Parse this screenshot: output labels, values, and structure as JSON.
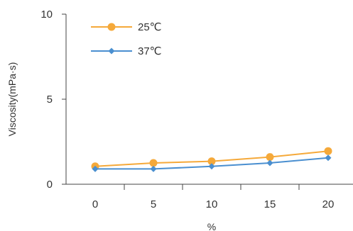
{
  "chart_data": {
    "type": "line",
    "title": "",
    "xlabel": "%",
    "ylabel": "Viscosity(mPa·s)",
    "categories": [
      "0",
      "5",
      "10",
      "15",
      "20"
    ],
    "x_values": [
      0,
      5,
      10,
      15,
      20
    ],
    "ylim": [
      0,
      10
    ],
    "y_ticks": [
      "0",
      "5",
      "10"
    ],
    "y_tick_values": [
      0,
      5,
      10
    ],
    "grid": false,
    "legend_placement": "top-left",
    "series": [
      {
        "name": "25℃",
        "values": [
          1.05,
          1.25,
          1.35,
          1.6,
          1.95
        ],
        "color": "#f5a93a",
        "marker": "circle"
      },
      {
        "name": "37℃",
        "values": [
          0.9,
          0.9,
          1.05,
          1.25,
          1.55
        ],
        "color": "#4a8fd0",
        "marker": "diamond"
      }
    ]
  }
}
